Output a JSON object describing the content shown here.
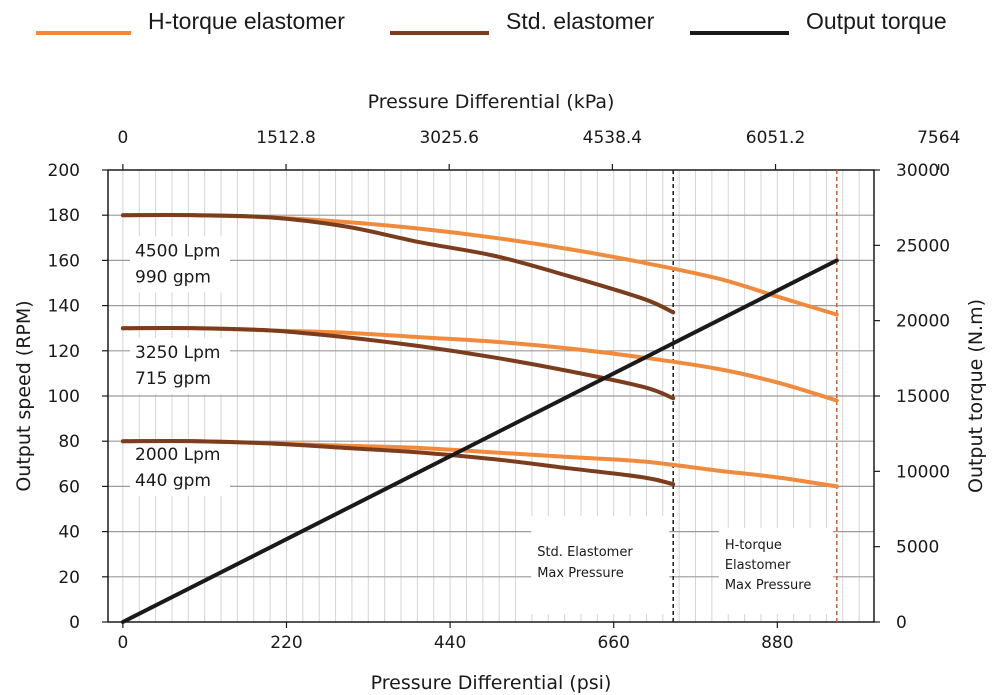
{
  "chart_data": {
    "type": "line",
    "legend": [
      {
        "label": "H-torque elastomer",
        "color": "#f08a3c"
      },
      {
        "label": "Std. elastomer",
        "color": "#7b3d1e"
      },
      {
        "label": "Output torque",
        "color": "#1a1a1a"
      }
    ],
    "legend_position": "top",
    "grid": true,
    "x_bottom": {
      "label": "Pressure Differential (psi)",
      "range": [
        -20,
        1010
      ],
      "ticks": [
        "0",
        "220",
        "440",
        "660",
        "880"
      ],
      "tick_values": [
        0,
        220,
        440,
        660,
        880
      ]
    },
    "x_top": {
      "label": "Pressure Differential (kPa)",
      "ticks": [
        "0",
        "1512.8",
        "3025.6",
        "4538.4",
        "6051.2",
        "7564"
      ],
      "tick_values_psi": [
        0,
        219.4,
        438.8,
        658.2,
        877.6,
        1097
      ]
    },
    "y_left": {
      "label": "Output speed (RPM)",
      "range": [
        0,
        200
      ],
      "ticks": [
        "0",
        "20",
        "40",
        "60",
        "80",
        "100",
        "120",
        "140",
        "160",
        "180",
        "200"
      ]
    },
    "y_right": {
      "label": "Output torque (N.m)",
      "range": [
        0,
        30000
      ],
      "ticks": [
        "0",
        "5000",
        "10000",
        "15000",
        "20000",
        "25000",
        "30000"
      ]
    },
    "series": [
      {
        "name": "H-torque elastomer",
        "flow": "4500 Lpm 990 gpm",
        "axis": "left",
        "x": [
          0,
          100,
          200,
          300,
          400,
          500,
          600,
          700,
          800,
          880,
          960
        ],
        "y": [
          180,
          180,
          179,
          177,
          174,
          170,
          165,
          159,
          152,
          144,
          136
        ]
      },
      {
        "name": "Std. elastomer",
        "flow": "4500 Lpm 990 gpm",
        "axis": "left",
        "x": [
          0,
          100,
          200,
          300,
          400,
          500,
          600,
          700,
          740
        ],
        "y": [
          180,
          180,
          179,
          175,
          168,
          162,
          153,
          143,
          137
        ]
      },
      {
        "name": "H-torque elastomer",
        "flow": "3250 Lpm 715 gpm",
        "axis": "left",
        "x": [
          0,
          100,
          200,
          300,
          400,
          500,
          600,
          700,
          800,
          880,
          960
        ],
        "y": [
          130,
          130,
          129,
          128,
          126,
          124,
          121,
          117,
          112,
          106,
          98
        ]
      },
      {
        "name": "Std. elastomer",
        "flow": "3250 Lpm 715 gpm",
        "axis": "left",
        "x": [
          0,
          100,
          200,
          300,
          400,
          500,
          600,
          700,
          740
        ],
        "y": [
          130,
          130,
          129,
          126,
          122,
          117,
          111,
          104,
          99
        ]
      },
      {
        "name": "H-torque elastomer",
        "flow": "2000 Lpm 440 gpm",
        "axis": "left",
        "x": [
          0,
          100,
          200,
          300,
          400,
          500,
          600,
          700,
          800,
          880,
          960
        ],
        "y": [
          80,
          80,
          79,
          78,
          77,
          75,
          73,
          71,
          67,
          64,
          60
        ]
      },
      {
        "name": "Std. elastomer",
        "flow": "2000 Lpm 440 gpm",
        "axis": "left",
        "x": [
          0,
          100,
          200,
          300,
          400,
          500,
          600,
          700,
          740
        ],
        "y": [
          80,
          80,
          79,
          77,
          75,
          72,
          68,
          64,
          61
        ]
      },
      {
        "name": "Output torque",
        "axis": "right",
        "x": [
          0,
          960
        ],
        "y": [
          0,
          24000
        ]
      }
    ],
    "flow_labels": [
      {
        "lines": [
          "4500 Lpm",
          "990 gpm"
        ]
      },
      {
        "lines": [
          "3250 Lpm",
          "715 gpm"
        ]
      },
      {
        "lines": [
          "2000 Lpm",
          "440 gpm"
        ]
      }
    ],
    "annotations": [
      {
        "x": 740,
        "color": "#1a1a1a",
        "lines": [
          "Std. Elastomer",
          "Max Pressure"
        ]
      },
      {
        "x": 960,
        "color": "#c0603a",
        "lines": [
          "H-torque",
          "Elastomer",
          "Max Pressure"
        ]
      }
    ]
  }
}
